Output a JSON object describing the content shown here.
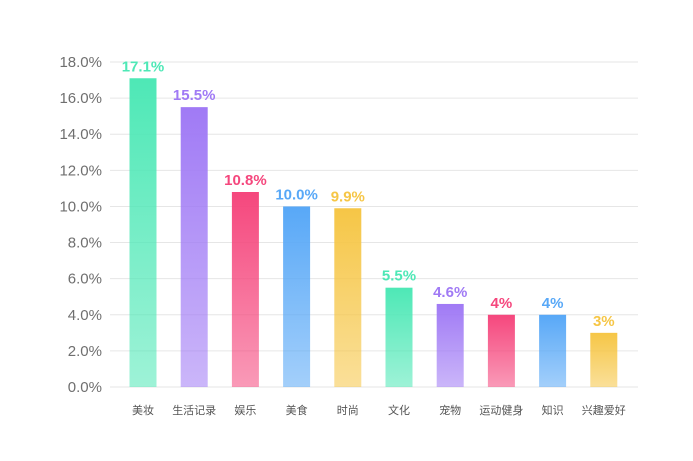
{
  "chart_data": {
    "type": "bar",
    "title": "",
    "xlabel": "",
    "ylabel": "",
    "ylim": [
      0,
      18
    ],
    "ytick_step": 2,
    "ytick_labels": [
      "0.0%",
      "2.0%",
      "4.0%",
      "6.0%",
      "8.0%",
      "10.0%",
      "12.0%",
      "14.0%",
      "16.0%",
      "18.0%"
    ],
    "grid": true,
    "legend": "none",
    "categories": [
      "美妆",
      "生活记录",
      "娱乐",
      "美食",
      "时尚",
      "文化",
      "宠物",
      "运动健身",
      "知识",
      "兴趣爱好"
    ],
    "values": [
      17.1,
      15.5,
      10.8,
      10.0,
      9.9,
      5.5,
      4.6,
      4,
      4,
      3
    ],
    "value_labels": [
      "17.1%",
      "15.5%",
      "10.8%",
      "10.0%",
      "9.9%",
      "5.5%",
      "4.6%",
      "4%",
      "4%",
      "3%"
    ],
    "colors": [
      "#4ee8b6",
      "#a07af5",
      "#f5477d",
      "#58a8f7",
      "#f6c646",
      "#4ee8b6",
      "#a07af5",
      "#f5477d",
      "#58a8f7",
      "#f6c646"
    ]
  }
}
